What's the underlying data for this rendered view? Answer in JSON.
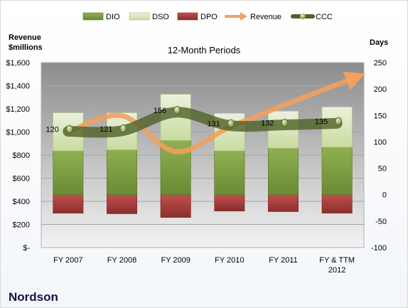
{
  "chart_data": {
    "type": "bar",
    "title": "12-Month Periods",
    "company": "Nordson",
    "y_left_label_line1": "Revenue",
    "y_left_label_line2": "$millions",
    "y_right_label": "Days",
    "categories": [
      "FY 2007",
      "FY 2008",
      "FY 2009",
      "FY 2010",
      "FY 2011",
      "FY & TTM 2012"
    ],
    "left_axis": {
      "min": 0,
      "max": 1600,
      "step": 200,
      "tick_labels": [
        "$-",
        "$200",
        "$400",
        "$600",
        "$800",
        "$1,000",
        "$1,200",
        "$1,400",
        "$1,600"
      ]
    },
    "right_axis": {
      "min": -100,
      "max": 250,
      "step": 50,
      "tick_labels": [
        "-100",
        "-50",
        "0",
        "50",
        "100",
        "150",
        "200",
        "250"
      ]
    },
    "series": [
      {
        "name": "DIO",
        "axis": "right",
        "values": [
          83,
          85,
          103,
          83,
          88,
          90
        ]
      },
      {
        "name": "DSO",
        "axis": "right",
        "values": [
          72,
          70,
          87,
          71,
          70,
          76
        ]
      },
      {
        "name": "DPO",
        "axis": "right",
        "values": [
          -35,
          -36,
          -43,
          -31,
          -32,
          -35
        ]
      },
      {
        "name": "Revenue",
        "axis": "left",
        "values": [
          1000,
          1140,
          830,
          1040,
          1230,
          1410
        ]
      },
      {
        "name": "CCC",
        "axis": "right",
        "values": [
          120,
          121,
          156,
          131,
          132,
          135
        ],
        "data_labels": [
          "120",
          "121",
          "156",
          "131",
          "132",
          "135"
        ]
      }
    ],
    "colors": {
      "DIO": "#77933c",
      "DSO": "#d7e4bd",
      "DPO": "#c0504d",
      "Revenue": "#f79646",
      "CCC": "#4f6228"
    },
    "grid": true,
    "legend": "top"
  }
}
